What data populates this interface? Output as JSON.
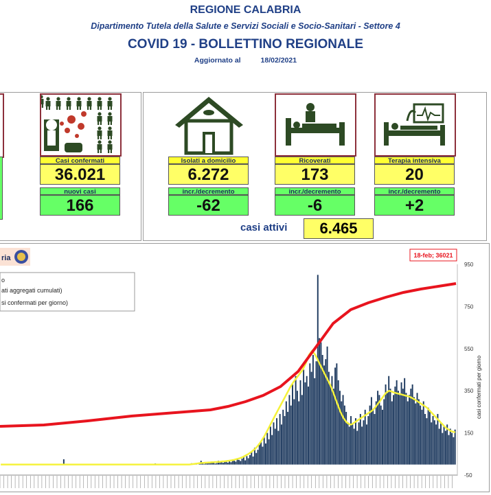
{
  "header": {
    "region": "REGIONE CALABRIA",
    "department": "Dipartimento Tutela della Salute e Servizi Sociali e Socio-Sanitari - Settore 4",
    "title": "COVID 19 - BOLLETTINO REGIONALE",
    "updated_label": "Aggiornato al",
    "updated_date": "18/02/2021"
  },
  "tiles": {
    "confirmed": {
      "label": "Casi confermati",
      "value": "36.021",
      "delta_label": "nuovi casi",
      "delta": "166"
    },
    "home": {
      "label": "Isolati a domicilio",
      "value": "6.272",
      "delta_label": "incr./decremento",
      "delta": "-62"
    },
    "hospital": {
      "label": "Ricoverati",
      "value": "173",
      "delta_label": "incr./decremento",
      "delta": "-6"
    },
    "icu": {
      "label": "Terapia intensiva",
      "value": "20",
      "delta_label": "incr./decremento",
      "delta": "+2"
    }
  },
  "active": {
    "label": "casi attivi",
    "value": "6.465"
  },
  "icons": [
    "virus-spread-icon",
    "house-icon",
    "hospital-bed-icon",
    "icu-bed-icon",
    "region-logo-icon"
  ],
  "chart_data": {
    "type": "bar",
    "partial_title": "ria",
    "legend": [
      "o",
      "ati aggregati cumulati)",
      "si confermati per giorno)"
    ],
    "callout": "18-feb; 36021",
    "right_axis_label": "casi confermati per giorno",
    "right_ticks": [
      "950",
      "750",
      "550",
      "350",
      "150",
      "-50"
    ],
    "ylim": [
      -50,
      950
    ],
    "daily_series_colors": {
      "bars": "#1e3a5f",
      "moving_average": "#f5f23a",
      "cumulative": "#e8141e"
    },
    "daily_bars": [
      0,
      0,
      1,
      0,
      0,
      1,
      0,
      0,
      0,
      2,
      0,
      0,
      1,
      0,
      0,
      0,
      1,
      0,
      0,
      0,
      0,
      0,
      1,
      0,
      0,
      0,
      0,
      1,
      0,
      0,
      0,
      0,
      0,
      0,
      0,
      1,
      0,
      0,
      0,
      0,
      25,
      0,
      0,
      0,
      1,
      0,
      0,
      0,
      0,
      0,
      0,
      0,
      0,
      0,
      0,
      0,
      0,
      0,
      0,
      1,
      0,
      0,
      0,
      0,
      0,
      0,
      0,
      0,
      0,
      0,
      0,
      0,
      2,
      0,
      0,
      0,
      0,
      0,
      0,
      0,
      1,
      0,
      0,
      0,
      0,
      1,
      0,
      0,
      0,
      0,
      0,
      2,
      0,
      0,
      0,
      0,
      0,
      0,
      5,
      0,
      1,
      0,
      0,
      0,
      1,
      0,
      0,
      0,
      3,
      0,
      0,
      0,
      0,
      0,
      0,
      2,
      0,
      0,
      1,
      0,
      0,
      6,
      0,
      4,
      2,
      0,
      8,
      18,
      6,
      3,
      10,
      5,
      8,
      12,
      9,
      14,
      5,
      7,
      18,
      10,
      15,
      8,
      12,
      20,
      9,
      16,
      11,
      25,
      18,
      14,
      30,
      22,
      17,
      28,
      35,
      20,
      40,
      30,
      45,
      60,
      38,
      80,
      55,
      70,
      95,
      110,
      85,
      130,
      100,
      150,
      120,
      180,
      140,
      200,
      170,
      220,
      160,
      240,
      190,
      260,
      230,
      300,
      250,
      330,
      280,
      380,
      310,
      420,
      350,
      300,
      400,
      330,
      450,
      390,
      420,
      370,
      480,
      440,
      520,
      410,
      490,
      900,
      600,
      580,
      520,
      470,
      500,
      560,
      440,
      380,
      420,
      360,
      460,
      480,
      400,
      350,
      300,
      330,
      280,
      250,
      200,
      180,
      230,
      190,
      170,
      220,
      160,
      200,
      240,
      180,
      210,
      260,
      190,
      230,
      280,
      320,
      260,
      240,
      300,
      350,
      330,
      280,
      260,
      310,
      380,
      340,
      420,
      360,
      300,
      330,
      370,
      400,
      350,
      330,
      390,
      360,
      410,
      340,
      300,
      330,
      360,
      380,
      320,
      290,
      340,
      310,
      280,
      260,
      300,
      240,
      220,
      270,
      250,
      200,
      230,
      210,
      190,
      240,
      170,
      200,
      150,
      180,
      160,
      190,
      140,
      170,
      150,
      130,
      166
    ],
    "moving_average": [
      0,
      0,
      0,
      0,
      0,
      0,
      0,
      0,
      0,
      0,
      0,
      0,
      0,
      0,
      0,
      0,
      0,
      0,
      0,
      0,
      0,
      0,
      0,
      0,
      0,
      0,
      0,
      0,
      0,
      0,
      0,
      0,
      0,
      0,
      0,
      0,
      0,
      0,
      0,
      0,
      0,
      0,
      0,
      0,
      0,
      0,
      0,
      0,
      0,
      0,
      0,
      0,
      0,
      0,
      0,
      0,
      0,
      0,
      0,
      0,
      0,
      0,
      0,
      0,
      0,
      0,
      0,
      0,
      0,
      0,
      0,
      0,
      0,
      0,
      0,
      0,
      0,
      0,
      0,
      0,
      0,
      0,
      0,
      0,
      0,
      0,
      0,
      0,
      0,
      0,
      0,
      0,
      0,
      0,
      0,
      0,
      0,
      0,
      0,
      0,
      0,
      0,
      0,
      0,
      0,
      0,
      0,
      0,
      0,
      0,
      0,
      0,
      0,
      0,
      0,
      0,
      0,
      0,
      0,
      0,
      0,
      1,
      2,
      3,
      4,
      5,
      6,
      7,
      8,
      8,
      9,
      9,
      10,
      10,
      11,
      11,
      12,
      12,
      13,
      13,
      14,
      15,
      15,
      16,
      17,
      18,
      19,
      20,
      22,
      24,
      26,
      28,
      30,
      33,
      36,
      40,
      44,
      48,
      53,
      58,
      64,
      70,
      77,
      85,
      94,
      104,
      115,
      127,
      140,
      154,
      168,
      183,
      198,
      212,
      226,
      240,
      254,
      268,
      282,
      296,
      310,
      324,
      338,
      352,
      366,
      378,
      390,
      400,
      410,
      420,
      430,
      440,
      450,
      465,
      480,
      500,
      520,
      530,
      540,
      530,
      520,
      505,
      490,
      475,
      460,
      445,
      430,
      415,
      400,
      385,
      370,
      350,
      330,
      310,
      290,
      270,
      250,
      235,
      220,
      210,
      200,
      195,
      190,
      190,
      195,
      200,
      205,
      210,
      215,
      220,
      225,
      230,
      235,
      240,
      245,
      250,
      255,
      262,
      270,
      280,
      290,
      300,
      310,
      320,
      330,
      340,
      345,
      350,
      348,
      345,
      342,
      340,
      338,
      336,
      334,
      332,
      330,
      328,
      326,
      324,
      322,
      318,
      314,
      310,
      305,
      300,
      295,
      290,
      285,
      280,
      275,
      270,
      262,
      254,
      246,
      238,
      230,
      222,
      214,
      206,
      198,
      190,
      182,
      175,
      170,
      165,
      160,
      157,
      155,
      153
    ],
    "cumulative_curve_points": [
      [
        0,
        620
      ],
      [
        100,
        618
      ],
      [
        200,
        612
      ],
      [
        300,
        605
      ],
      [
        400,
        600
      ],
      [
        480,
        596
      ],
      [
        520,
        591
      ],
      [
        560,
        584
      ],
      [
        600,
        575
      ],
      [
        640,
        562
      ],
      [
        680,
        540
      ],
      [
        720,
        505
      ],
      [
        760,
        470
      ],
      [
        800,
        450
      ],
      [
        840,
        440
      ],
      [
        880,
        432
      ],
      [
        920,
        425
      ],
      [
        960,
        420
      ],
      [
        1000,
        416
      ],
      [
        1040,
        412
      ]
    ]
  }
}
